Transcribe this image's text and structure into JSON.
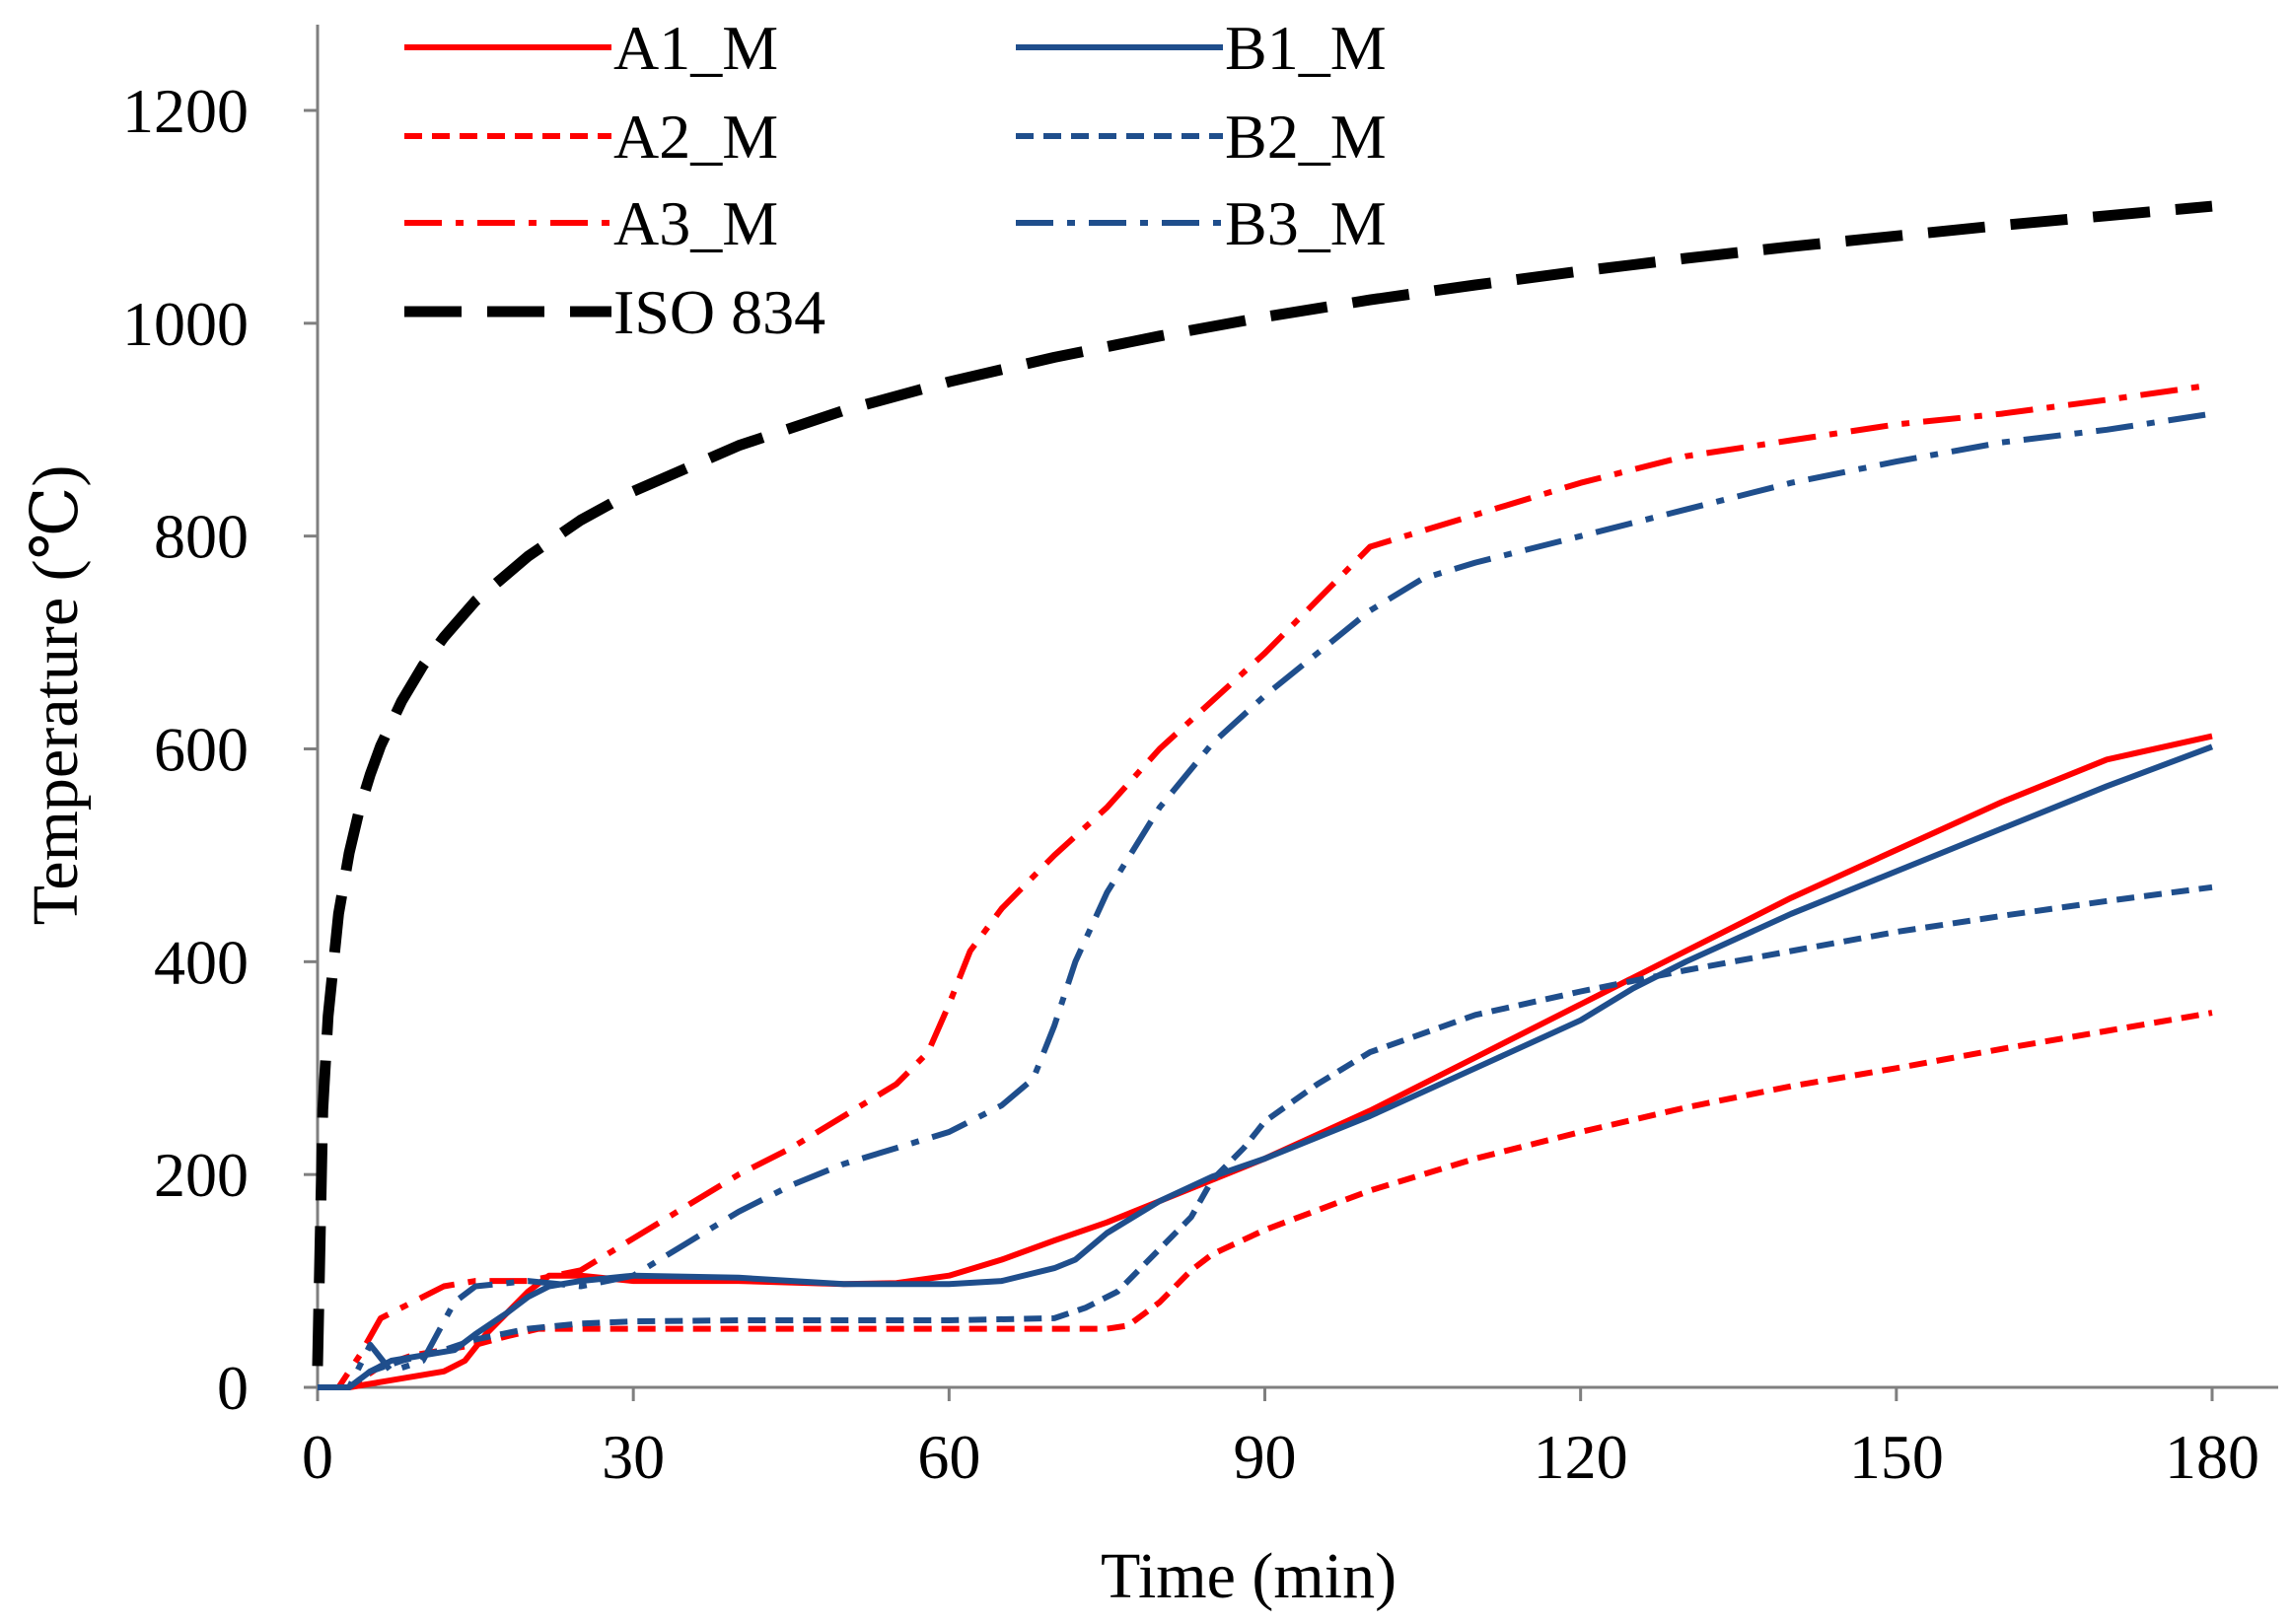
{
  "chart_data": {
    "type": "line",
    "title": "",
    "xlabel": "Time (min)",
    "ylabel": "Temperature (℃)",
    "xlim": [
      0,
      180
    ],
    "ylim": [
      0,
      1250
    ],
    "xticks": [
      0,
      30,
      60,
      90,
      120,
      150,
      180
    ],
    "yticks": [
      0,
      200,
      400,
      600,
      800,
      1000,
      1200
    ],
    "legend_position": "top-left",
    "grid": false,
    "series": [
      {
        "name": "A1_M",
        "color": "#ff0000",
        "style": "solid",
        "x": [
          0,
          3,
          6,
          9,
          12,
          14,
          16,
          18,
          20,
          22,
          25,
          30,
          40,
          50,
          55,
          60,
          65,
          70,
          75,
          80,
          85,
          90,
          100,
          110,
          120,
          130,
          140,
          150,
          160,
          170,
          180
        ],
        "y": [
          0,
          0,
          5,
          10,
          15,
          25,
          50,
          70,
          90,
          105,
          105,
          100,
          100,
          97,
          98,
          105,
          120,
          138,
          155,
          175,
          195,
          215,
          260,
          310,
          360,
          410,
          460,
          505,
          550,
          590,
          612
        ]
      },
      {
        "name": "A2_M",
        "color": "#ff0000",
        "style": "dashed",
        "x": [
          0,
          3,
          6,
          9,
          12,
          15,
          18,
          21,
          25,
          30,
          40,
          50,
          60,
          70,
          75,
          77,
          80,
          83,
          85,
          90,
          100,
          110,
          120,
          130,
          140,
          150,
          160,
          170,
          180
        ],
        "y": [
          0,
          0,
          20,
          30,
          35,
          40,
          48,
          55,
          55,
          55,
          55,
          55,
          55,
          55,
          55,
          58,
          80,
          110,
          125,
          148,
          185,
          215,
          240,
          263,
          283,
          300,
          318,
          335,
          352
        ]
      },
      {
        "name": "A3_M",
        "color": "#ff0000",
        "style": "dashdot",
        "x": [
          0,
          2,
          4,
          6,
          8,
          10,
          12,
          15,
          20,
          25,
          30,
          35,
          40,
          45,
          50,
          55,
          58,
          60,
          62,
          65,
          68,
          70,
          75,
          80,
          85,
          90,
          95,
          100,
          105,
          110,
          120,
          130,
          140,
          150,
          160,
          170,
          180
        ],
        "y": [
          0,
          0,
          30,
          65,
          75,
          85,
          95,
          100,
          100,
          110,
          140,
          170,
          200,
          225,
          255,
          285,
          315,
          360,
          410,
          450,
          480,
          500,
          545,
          600,
          645,
          690,
          740,
          790,
          805,
          820,
          850,
          875,
          890,
          905,
          915,
          928,
          942
        ]
      },
      {
        "name": "B1_M",
        "color": "#1f4e8c",
        "style": "solid",
        "x": [
          0,
          3,
          5,
          7,
          10,
          13,
          15,
          18,
          20,
          22,
          25,
          30,
          40,
          50,
          60,
          65,
          70,
          72,
          75,
          80,
          85,
          90,
          100,
          110,
          120,
          125,
          130,
          140,
          150,
          160,
          170,
          180
        ],
        "y": [
          0,
          0,
          15,
          25,
          30,
          35,
          50,
          70,
          85,
          95,
          100,
          105,
          103,
          97,
          97,
          100,
          112,
          120,
          145,
          175,
          198,
          215,
          255,
          300,
          345,
          375,
          400,
          445,
          485,
          525,
          565,
          602
        ]
      },
      {
        "name": "B2_M",
        "color": "#1f4e8c",
        "style": "dashed",
        "x": [
          0,
          3,
          5,
          8,
          12,
          15,
          20,
          25,
          30,
          40,
          50,
          60,
          70,
          73,
          76,
          80,
          83,
          85,
          88,
          90,
          95,
          100,
          110,
          120,
          130,
          140,
          150,
          160,
          170,
          180
        ],
        "y": [
          0,
          0,
          15,
          25,
          35,
          45,
          55,
          60,
          62,
          63,
          63,
          63,
          65,
          75,
          90,
          130,
          160,
          195,
          225,
          250,
          285,
          315,
          350,
          372,
          392,
          410,
          428,
          443,
          457,
          470
        ]
      },
      {
        "name": "B3_M",
        "color": "#1f4e8c",
        "style": "dashdot",
        "x": [
          0,
          3,
          5,
          7,
          10,
          13,
          15,
          20,
          25,
          30,
          35,
          40,
          45,
          50,
          55,
          60,
          65,
          68,
          70,
          72,
          75,
          80,
          85,
          90,
          95,
          100,
          105,
          110,
          120,
          130,
          140,
          150,
          160,
          170,
          180
        ],
        "y": [
          0,
          0,
          40,
          15,
          25,
          80,
          95,
          100,
          95,
          105,
          135,
          165,
          190,
          210,
          225,
          240,
          265,
          290,
          340,
          400,
          465,
          545,
          605,
          650,
          690,
          730,
          760,
          775,
          800,
          825,
          850,
          870,
          888,
          900,
          915
        ]
      },
      {
        "name": "ISO 834",
        "color": "#000000",
        "style": "longdash",
        "x": [
          0,
          0.5,
          1,
          2,
          3,
          4,
          5,
          6,
          8,
          10,
          12,
          15,
          20,
          25,
          30,
          40,
          50,
          60,
          70,
          80,
          90,
          100,
          110,
          120,
          130,
          140,
          150,
          160,
          170,
          180
        ],
        "y": [
          20,
          261,
          349,
          445,
          502,
          544,
          576,
          603,
          645,
          678,
          705,
          739,
          781,
          815,
          842,
          885,
          918,
          945,
          968,
          988,
          1006,
          1022,
          1036,
          1049,
          1061,
          1072,
          1082,
          1092,
          1101,
          1110
        ]
      }
    ]
  }
}
